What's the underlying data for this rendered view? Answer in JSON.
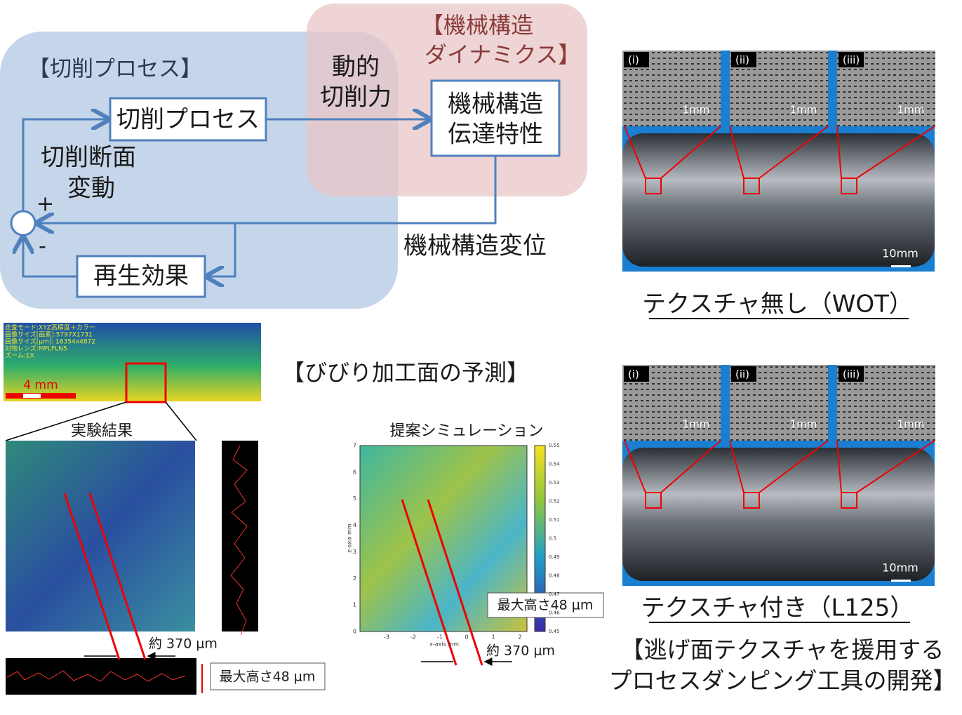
{
  "diagram": {
    "groups": {
      "cutting": "【切削プロセス】",
      "machine": [
        "【機械構造",
        "ダイナミクス】"
      ]
    },
    "nodes": [
      {
        "label": [
          "切削プロセス"
        ]
      },
      {
        "label": [
          "機械構造",
          "伝達特性"
        ]
      },
      {
        "label": [
          "再生効果"
        ]
      }
    ],
    "edge_labels": {
      "force": [
        "動的",
        "切削力"
      ],
      "chip": [
        "切削断面",
        "変動"
      ],
      "displacement": "機械構造変位",
      "plus": "+",
      "minus": "-"
    }
  },
  "photos": {
    "panels": [
      {
        "caption": "テクスチャ無し（WOT）",
        "insets": [
          "(i)",
          "(ii)",
          "(iii)"
        ],
        "inset_scale": "1mm",
        "scale": "10mm"
      },
      {
        "caption": "テクスチャ付き（L125）",
        "insets": [
          "(i)",
          "(ii)",
          "(iii)"
        ],
        "inset_scale": "1mm",
        "scale": "10mm"
      }
    ],
    "caption": [
      "【逃げ面テクスチャを援用する",
      "プロセスダンピング工具の開発】"
    ]
  },
  "prediction": {
    "title": "【びびり加工面の予測】",
    "scan_info": [
      "走査モード:XYZ高精度＋カラー",
      "画像サイズ[画素]:5797X1731",
      "画像サイズ[µm]: 16354x4872",
      "対物レンズ:MPLFLN5",
      "ズーム:1X"
    ],
    "scan_scale": "4 mm",
    "experiment": {
      "title": "実験結果",
      "pitch": "約 370 µm",
      "height": "最大高さ48 µm"
    },
    "simulation": {
      "title": "提案シミュレーション",
      "pitch": "約 370 µm",
      "height": "最大高さ48 µm",
      "xlabel": "x-axis mm",
      "ylabel": "z-axis mm",
      "xticks": [
        -3,
        -2,
        -1,
        0,
        1,
        2
      ],
      "yticks": [
        0,
        1,
        2,
        3,
        4,
        5,
        6,
        7
      ],
      "colorbar_ticks": [
        0.45,
        0.46,
        0.47,
        0.48,
        0.49,
        0.5,
        0.51,
        0.52,
        0.53,
        0.54,
        0.55
      ]
    }
  }
}
